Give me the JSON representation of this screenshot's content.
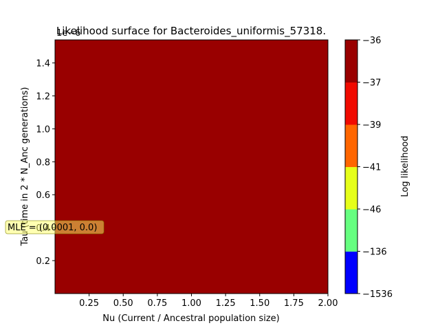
{
  "chart_data": {
    "type": "heatmap",
    "title": "Likelihood surface for Bacteroides_uniformis_57318.",
    "xlabel": "Nu (Current / Ancestral population size)",
    "ylabel": "Tau (time in 2 * N_Anc generations)",
    "x_ticks": [
      "0.25",
      "0.50",
      "0.75",
      "1.00",
      "1.25",
      "1.50",
      "1.75",
      "2.00"
    ],
    "x_tick_values": [
      0.25,
      0.5,
      0.75,
      1.0,
      1.25,
      1.5,
      1.75,
      2.0
    ],
    "xlim": [
      0.0001,
      2.0
    ],
    "y_ticks": [
      "0.2",
      "0.4",
      "0.6",
      "0.8",
      "1.0",
      "1.2",
      "1.4"
    ],
    "y_tick_values": [
      0.2,
      0.4,
      0.6,
      0.8,
      1.0,
      1.2,
      1.4
    ],
    "ylim": [
      0.0,
      1.54
    ],
    "y_offset_label": "1e−6",
    "surface_fill": "#990000",
    "colorbar": {
      "label": "Log likelihood",
      "levels": [
        -1536,
        -136,
        -46,
        -41,
        -39,
        -37,
        -36
      ],
      "tick_labels": [
        "−1536",
        "−136",
        "−46",
        "−41",
        "−39",
        "−37",
        "−36"
      ],
      "colors": [
        "#0000ff",
        "#66ff80",
        "#e6ff1a",
        "#ff6600",
        "#f00a00",
        "#990000"
      ]
    },
    "annotation": {
      "text": "MLE = (0.0001, 0.0)",
      "x": 0.0001,
      "y": 0.0,
      "box_color": "#ffff66"
    }
  }
}
